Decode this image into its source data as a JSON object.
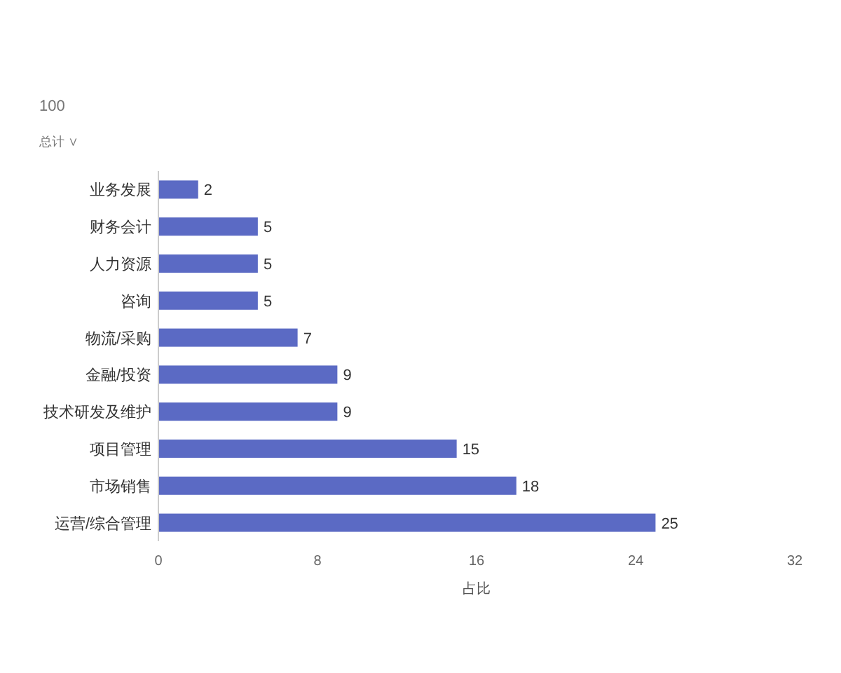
{
  "chart_data": {
    "type": "bar",
    "orientation": "horizontal",
    "categories": [
      "业务发展",
      "财务会计",
      "人力资源",
      "咨询",
      "物流/采购",
      "金融/投资",
      "技术研发及维护",
      "项目管理",
      "市场销售",
      "运营/综合管理"
    ],
    "values": [
      2,
      5,
      5,
      5,
      7,
      9,
      9,
      15,
      18,
      25
    ],
    "color": "#5b6ac4",
    "xlim": [
      0,
      32
    ],
    "xticks": [
      0,
      8,
      16,
      24,
      32
    ],
    "xlabel": "占比",
    "data_labels": true,
    "annotations": [
      "100",
      "总计 ∨"
    ]
  }
}
